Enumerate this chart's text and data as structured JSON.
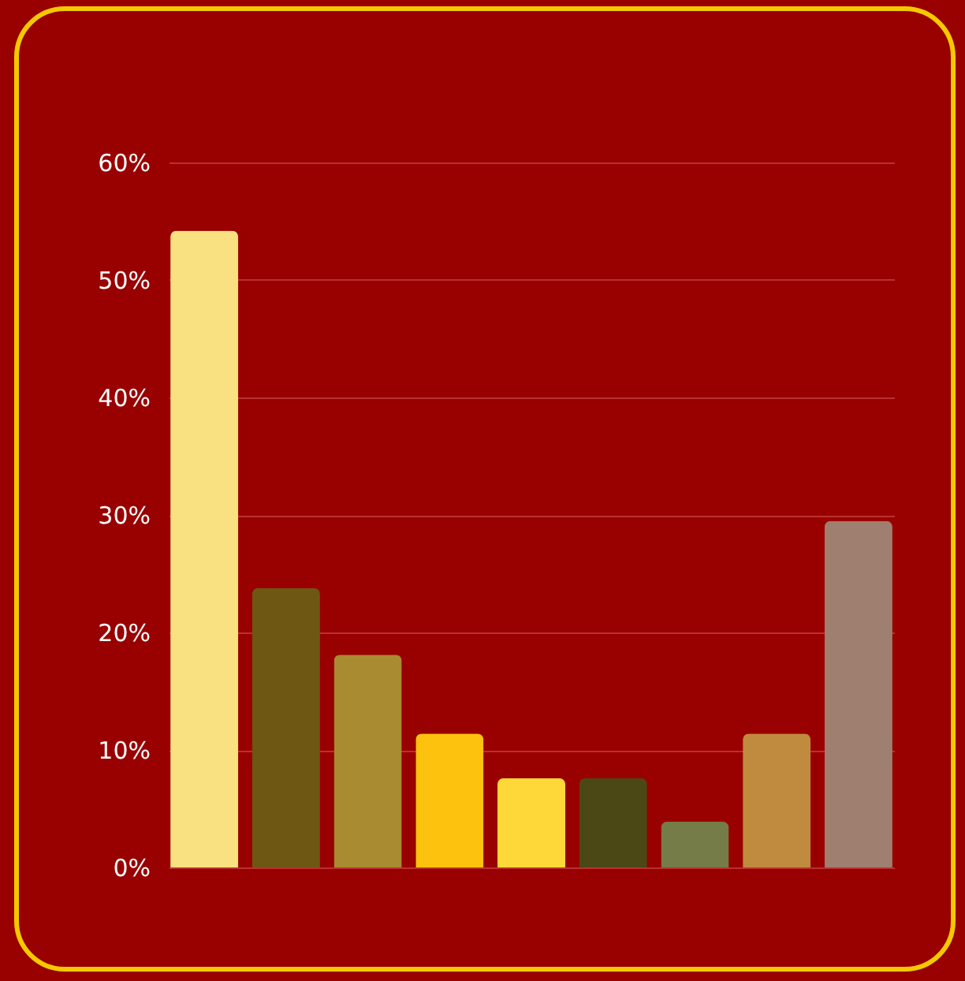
{
  "chart_data": {
    "type": "bar",
    "categories": [
      null,
      null,
      null,
      null,
      null,
      null,
      null,
      null,
      null
    ],
    "values": [
      54.2,
      23.8,
      18.1,
      11.4,
      7.6,
      7.6,
      3.9,
      11.4,
      29.5
    ],
    "colors": [
      "#f9e080",
      "#6e5713",
      "#a98b31",
      "#fcc20d",
      "#fed838",
      "#4c4815",
      "#767c47",
      "#c08b3e",
      "#9f7f6f"
    ],
    "ylim": [
      0,
      60
    ],
    "yticks": [
      {
        "value": 0,
        "label": "0%"
      },
      {
        "value": 10,
        "label": "10%"
      },
      {
        "value": 20,
        "label": "20%"
      },
      {
        "value": 30,
        "label": "30%"
      },
      {
        "value": 40,
        "label": "40%"
      },
      {
        "value": 50,
        "label": "50%"
      },
      {
        "value": 60,
        "label": "60%"
      }
    ],
    "grid": "y",
    "tick_labels": "y"
  }
}
